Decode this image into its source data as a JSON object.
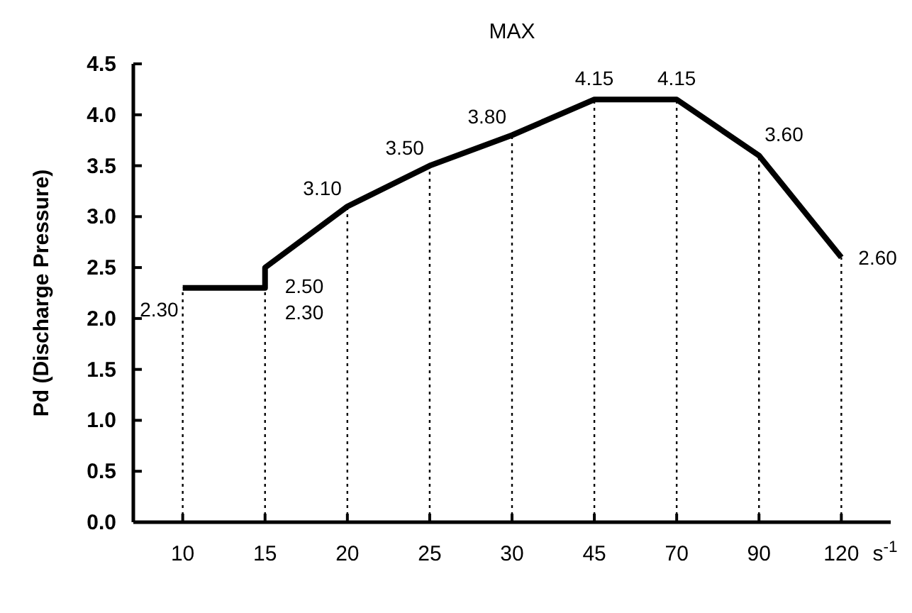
{
  "chart_data": {
    "type": "line",
    "title": "MAX",
    "xlabel": "s$^{-1}$",
    "ylabel": "Pd (Discharge Pressure)",
    "categories": [
      "10",
      "15",
      "20",
      "25",
      "30",
      "45",
      "70",
      "90",
      "120"
    ],
    "series": [
      {
        "color": "#000000",
        "x": [
          "10",
          "15",
          "15",
          "20",
          "25",
          "30",
          "45",
          "70",
          "90",
          "120"
        ],
        "values": [
          2.3,
          2.3,
          2.5,
          3.1,
          3.5,
          3.8,
          4.15,
          4.15,
          3.6,
          2.6
        ],
        "value_labels": [
          "2.30",
          "2.30",
          "2.50",
          "3.10",
          "3.50",
          "3.80",
          "4.15",
          "4.15",
          "3.60",
          "2.60"
        ]
      }
    ],
    "ylim": [
      0,
      4.5
    ],
    "yticks": [
      {
        "value": 0,
        "label": "0.0"
      },
      {
        "value": 0.5,
        "label": "0.5"
      },
      {
        "value": 1,
        "label": "1.0"
      },
      {
        "value": 1.5,
        "label": "1.5"
      },
      {
        "value": 2,
        "label": "2.0"
      },
      {
        "value": 2.5,
        "label": "2.5"
      },
      {
        "value": 3,
        "label": "3.0"
      },
      {
        "value": 3.5,
        "label": "3.5"
      },
      {
        "value": 4,
        "label": "4.0"
      },
      {
        "value": 4.5,
        "label": "4.5"
      }
    ],
    "ref_lines": [
      {
        "axis": "x",
        "value": "10",
        "line_style": "dotted"
      },
      {
        "axis": "x",
        "value": "15",
        "line_style": "dotted"
      },
      {
        "axis": "x",
        "value": "20",
        "line_style": "dotted"
      },
      {
        "axis": "x",
        "value": "25",
        "line_style": "dotted"
      },
      {
        "axis": "x",
        "value": "30",
        "line_style": "dotted"
      },
      {
        "axis": "x",
        "value": "45",
        "line_style": "dotted"
      },
      {
        "axis": "x",
        "value": "70",
        "line_style": "dotted"
      },
      {
        "axis": "x",
        "value": "90",
        "line_style": "dotted"
      },
      {
        "axis": "x",
        "value": "120",
        "line_style": "dotted"
      }
    ],
    "grid": false,
    "marker": "none",
    "line_style": "solid"
  }
}
